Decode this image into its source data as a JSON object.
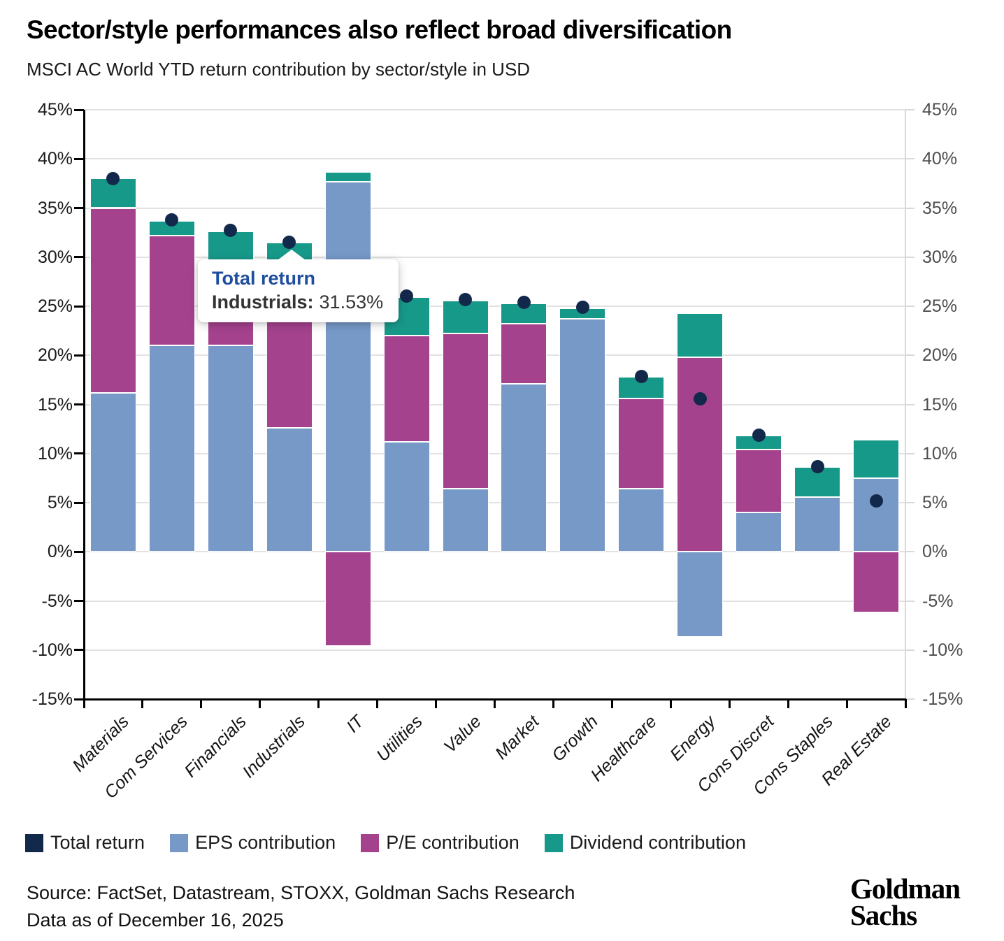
{
  "title": "Sector/style performances also reflect broad diversification",
  "subtitle": "MSCI AC World YTD return contribution by sector/style in USD",
  "chart_data": {
    "type": "bar",
    "subtype": "stacked-bars-with-point-markers",
    "categories": [
      "Materials",
      "Com Services",
      "Financials",
      "Industrials",
      "IT",
      "Utilities",
      "Value",
      "Market",
      "Growth",
      "Healthcare",
      "Energy",
      "Cons Discret",
      "Cons Staples",
      "Real Estate"
    ],
    "series": [
      {
        "name": "EPS contribution",
        "color": "#7799C8",
        "values": [
          16.2,
          21.0,
          21.0,
          12.6,
          37.7,
          11.2,
          6.4,
          17.1,
          23.7,
          6.4,
          -8.7,
          4.0,
          5.6,
          7.5
        ]
      },
      {
        "name": "P/E contribution",
        "color": "#A4428E",
        "values": [
          18.8,
          11.2,
          8.5,
          16.9,
          -9.6,
          10.8,
          15.8,
          6.1,
          0,
          9.2,
          19.8,
          6.4,
          0,
          -6.2
        ]
      },
      {
        "name": "Dividend contribution",
        "color": "#17998A",
        "values": [
          3.0,
          1.5,
          3.1,
          2.0,
          1.0,
          3.9,
          3.4,
          2.1,
          1.1,
          2.2,
          4.5,
          1.4,
          3.0,
          3.9
        ]
      }
    ],
    "markers": {
      "name": "Total return",
      "color": "#13294B",
      "values": [
        38.0,
        33.8,
        32.7,
        31.53,
        29.1,
        26.0,
        25.7,
        25.4,
        24.9,
        17.85,
        15.6,
        11.9,
        8.7,
        5.2
      ]
    },
    "y_axis": {
      "min": -15,
      "max": 45,
      "step": 5,
      "format": "percent",
      "left_labels": true,
      "right_labels": true
    },
    "grid": true,
    "legend_position": "bottom"
  },
  "tooltip": {
    "series": "Total return",
    "category_label": "Industrials:",
    "value": "31.53%"
  },
  "legend": {
    "items": [
      {
        "label": "Total return",
        "color": "#13294B"
      },
      {
        "label": "EPS contribution",
        "color": "#7799C8"
      },
      {
        "label": "P/E contribution",
        "color": "#A4428E"
      },
      {
        "label": "Dividend contribution",
        "color": "#17998A"
      }
    ]
  },
  "footer": {
    "source": "Source: FactSet, Datastream, STOXX, Goldman Sachs Research",
    "as_of": "Data as of December 16, 2025"
  },
  "logo": {
    "line1": "Goldman",
    "line2": "Sachs"
  }
}
